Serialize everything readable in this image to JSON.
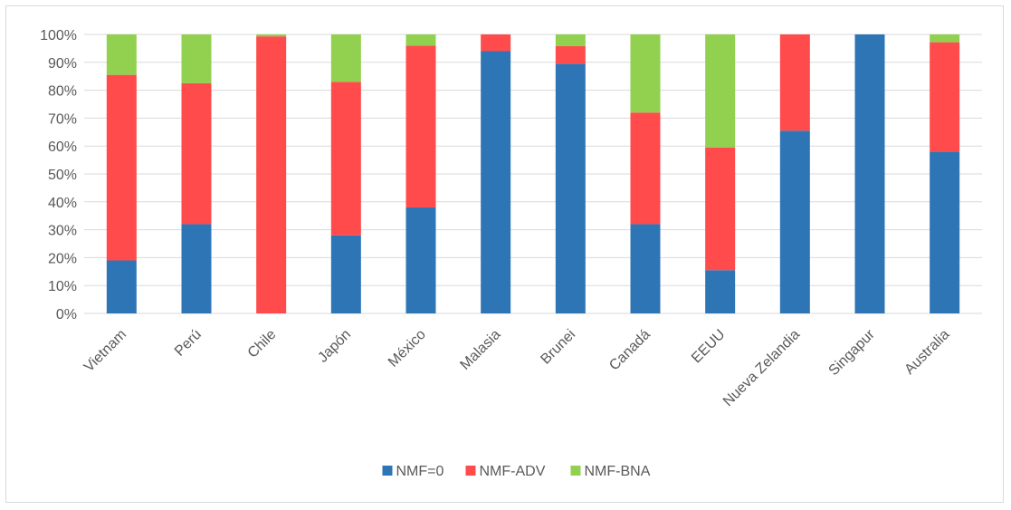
{
  "chart_data": {
    "type": "bar",
    "stacked": true,
    "percent": true,
    "categories": [
      "Vietnam",
      "Perú",
      "Chile",
      "Japón",
      "México",
      "Malasia",
      "Brunei",
      "Canadá",
      "EEUU",
      "Nueva Zelandia",
      "Singapur",
      "Australia"
    ],
    "series": [
      {
        "name": "NMF=0",
        "color": "#2e75b6",
        "values": [
          19,
          32,
          0,
          28,
          38,
          94,
          89.5,
          32,
          15.5,
          65.5,
          100,
          58
        ]
      },
      {
        "name": "NMF-ADV",
        "color": "#ff4b4b",
        "values": [
          66.5,
          50.5,
          99.3,
          55,
          58,
          6,
          6.3,
          40,
          44,
          34.5,
          0,
          39.2
        ]
      },
      {
        "name": "NMF-BNA",
        "color": "#92d050",
        "values": [
          14.5,
          17.5,
          0.7,
          17,
          4,
          0,
          4.2,
          28,
          40.5,
          0,
          0,
          2.8
        ]
      }
    ],
    "yticks": [
      "0%",
      "10%",
      "20%",
      "30%",
      "40%",
      "50%",
      "60%",
      "70%",
      "80%",
      "90%",
      "100%"
    ],
    "ylim": [
      0,
      100
    ],
    "title": "",
    "xlabel": "",
    "ylabel": "",
    "grid": true,
    "legend_position": "bottom"
  }
}
